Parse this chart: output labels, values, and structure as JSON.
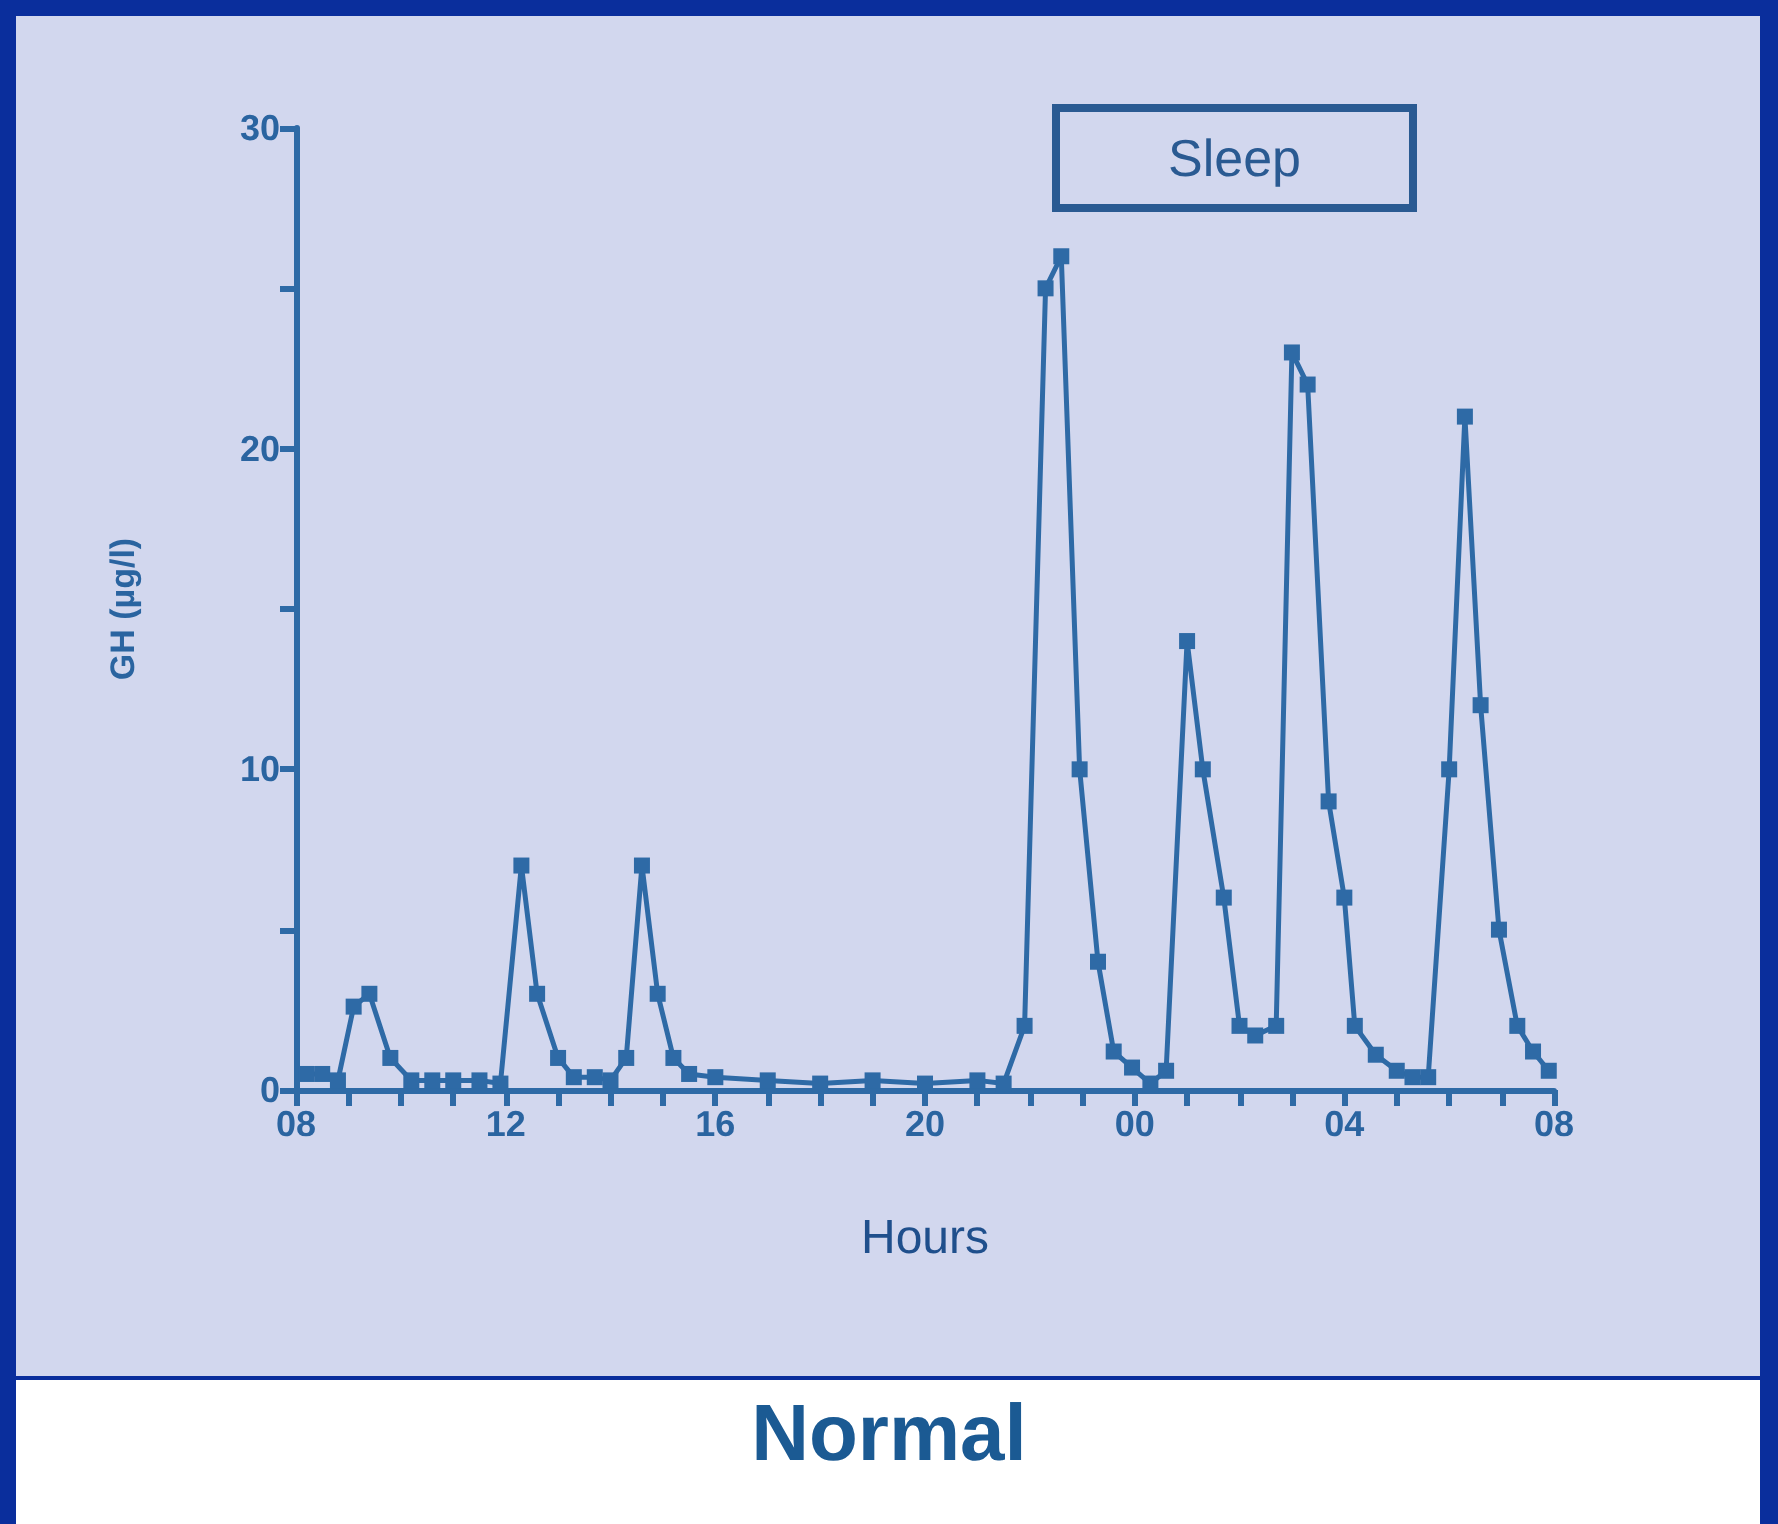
{
  "chart_data": {
    "type": "line",
    "title": "Normal",
    "xlabel": "Hours",
    "ylabel": "GH (µg/l)",
    "annotations": [
      "Sleep"
    ],
    "x": [
      8.2,
      8.5,
      8.8,
      9.1,
      9.4,
      9.8,
      10.2,
      10.6,
      11,
      11.5,
      11.9,
      12.3,
      12.6,
      13,
      13.3,
      13.7,
      14,
      14.3,
      14.6,
      14.9,
      15.2,
      15.5,
      16,
      17,
      18,
      19,
      20,
      21,
      21.5,
      21.9,
      22.3,
      22.6,
      22.95,
      23.3,
      23.6,
      23.95,
      24.3,
      24.6,
      25,
      25.3,
      25.7,
      26,
      26.3,
      26.7,
      27,
      27.3,
      27.7,
      28,
      28.2,
      28.6,
      29,
      29.3,
      29.6,
      30,
      30.3,
      30.6,
      30.95,
      31.3,
      31.6,
      31.9
    ],
    "series": [
      {
        "color": "#2e6aa6",
        "values": [
          0.5,
          0.5,
          0.3,
          2.6,
          3,
          1,
          0.3,
          0.3,
          0.3,
          0.3,
          0.2,
          7,
          3,
          1,
          0.4,
          0.4,
          0.3,
          1,
          7,
          3,
          1,
          0.5,
          0.4,
          0.3,
          0.2,
          0.3,
          0.2,
          0.3,
          0.2,
          2,
          25,
          26,
          10,
          4,
          1.2,
          0.7,
          0.2,
          0.6,
          14,
          10,
          6,
          2,
          1.7,
          2,
          23,
          22,
          9,
          6,
          2,
          1.1,
          0.6,
          0.4,
          0.4,
          10,
          21,
          12,
          5,
          2,
          1.2,
          0.6
        ]
      }
    ],
    "xlim": [
      8,
      32
    ],
    "xticks": [
      {
        "value": 8,
        "label": "08"
      },
      {
        "value": 9,
        "label": null
      },
      {
        "value": 10,
        "label": null
      },
      {
        "value": 11,
        "label": null
      },
      {
        "value": 12,
        "label": "12"
      },
      {
        "value": 13,
        "label": null
      },
      {
        "value": 14,
        "label": null
      },
      {
        "value": 15,
        "label": null
      },
      {
        "value": 16,
        "label": "16"
      },
      {
        "value": 17,
        "label": null
      },
      {
        "value": 18,
        "label": null
      },
      {
        "value": 19,
        "label": null
      },
      {
        "value": 20,
        "label": "20"
      },
      {
        "value": 21,
        "label": null
      },
      {
        "value": 22,
        "label": null
      },
      {
        "value": 23,
        "label": null
      },
      {
        "value": 24,
        "label": "00"
      },
      {
        "value": 25,
        "label": null
      },
      {
        "value": 26,
        "label": null
      },
      {
        "value": 27,
        "label": null
      },
      {
        "value": 28,
        "label": "04"
      },
      {
        "value": 29,
        "label": null
      },
      {
        "value": 30,
        "label": null
      },
      {
        "value": 31,
        "label": null
      },
      {
        "value": 32,
        "label": "08"
      }
    ],
    "ylim": [
      0,
      30
    ],
    "yticks": [
      0,
      {
        "value": 5,
        "label": null
      },
      10,
      {
        "value": 15,
        "label": null
      },
      20,
      {
        "value": 25,
        "label": null
      },
      30
    ],
    "grid": false,
    "marker": "square",
    "line_style": "solid"
  }
}
